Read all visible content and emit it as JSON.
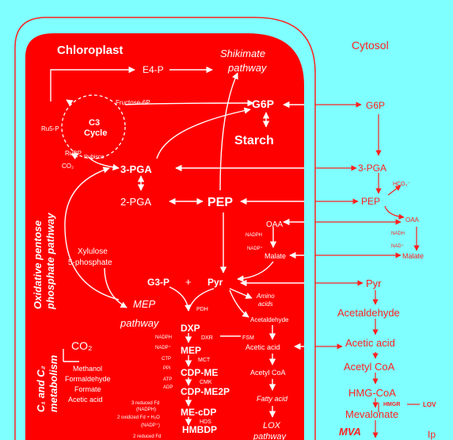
{
  "compartments": {
    "chloroplast": "Chloroplast",
    "cytosol": "Cytosol"
  },
  "chloroplast": {
    "e4p": "E4-P",
    "shikimate_pathway": [
      "Shikimate",
      "pathway"
    ],
    "fructose_6p": "Fructose-6P",
    "g6p": "G6P",
    "c3_cycle": [
      "C3",
      "Cycle"
    ],
    "ru5p": "Ru5-P",
    "rubp": "RuBP",
    "rubisco": "Rubisco",
    "co2_small": "CO₂",
    "starch": "Starch",
    "pga3": "3-PGA",
    "pga2": "2-PGA",
    "pep": "PEP",
    "oxidative_pentose": [
      "Oxidative pentose",
      "phosphate pathway"
    ],
    "xylulose": [
      "Xylulose",
      "5-phosphate"
    ],
    "oaa": "OAA",
    "nadph_1": "NADPH",
    "nadp_1": "NADP⁺",
    "malate": "Malate",
    "g3p": "G3-P",
    "plus": "+",
    "pyr": "Pyr",
    "amino_acids": [
      "Amino",
      "acids"
    ],
    "mep_pathway": [
      "MEP",
      "pathway"
    ],
    "pdh": "PDH",
    "acetaldehyde": "Acetaldehyde",
    "dxp": "DXP",
    "dxr": "DXR",
    "fsm": "FSM",
    "nadph_2": "NADPH",
    "nadp_2": "NADP⁺",
    "mep": "MEP",
    "mct": "MCT",
    "ctp": "CTP",
    "ppi": "PPi",
    "cdp_me": "CDP-ME",
    "cmk": "CMK",
    "atp": "ATP",
    "adp": "ADP",
    "cdp_me2p": "CDP-ME2P",
    "mecdp": "ME-cDP",
    "hds": "HDS",
    "reduced_fd_1": [
      "3 reduced Fd",
      "(NADPH)"
    ],
    "oxidized_fd": "2 oxidized Fd + H₂O",
    "nadp_3": "(NADP⁺)",
    "hmbdp": "HMBDP",
    "reduced_fd_2": "2 reduced Fd",
    "acetic_acid": "Acetic acid",
    "acetyl_coa": "Acetyl CoA",
    "fatty_acid": "Fatty acid",
    "lox_pathway": [
      "LOX",
      "pathway"
    ],
    "c1c2": [
      "C₁ and C₂",
      "metabolism"
    ],
    "co2": "CO₂",
    "c1_list": [
      "Methanol",
      "Formaldehyde",
      "Formate",
      "Acetic acid"
    ]
  },
  "cytosol": {
    "g6p": "G6P",
    "pga3": "3-PGA",
    "pep": "PEP",
    "hco3": "HCO₃⁻",
    "oaa": "OAA",
    "nadh_1": "NADH",
    "nad_1": "NAD⁺",
    "malate": "Malate",
    "pyr": "Pyr",
    "acetaldehyde": "Acetaldehyde",
    "acetic_acid": "Acetic acid",
    "acetyl_coa": "Acetyl CoA",
    "hmg_coa": "HMG-CoA",
    "hmgr": "HMGR",
    "lov": "LOV",
    "mevalonate": "Mevalonate",
    "mva": "MVA",
    "ipp": "Ip"
  }
}
